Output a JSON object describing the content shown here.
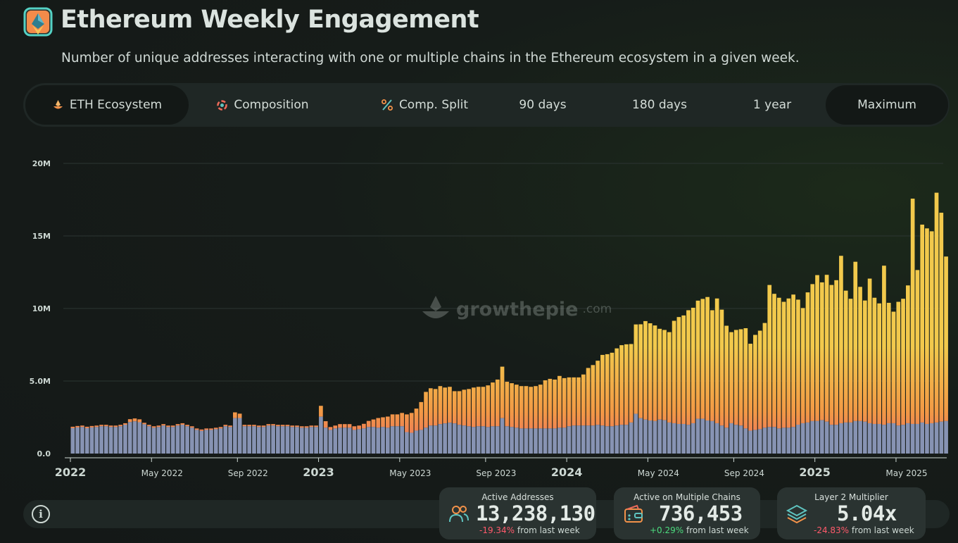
{
  "header": {
    "title": "Ethereum Weekly Engagement",
    "subtitle": "Number of unique addresses interacting with one or multiple chains in the Ethereum ecosystem in a given week."
  },
  "tabs": [
    {
      "label": "ETH Ecosystem",
      "icon": "eth-ecosystem-icon",
      "active": true
    },
    {
      "label": "Composition",
      "icon": "composition-icon",
      "active": false
    },
    {
      "label": "Comp. Split",
      "icon": "percent-icon",
      "active": false
    },
    {
      "label": "90 days",
      "active": false
    },
    {
      "label": "180 days",
      "active": false
    },
    {
      "label": "1 year",
      "active": false
    },
    {
      "label": "Maximum",
      "active": true
    }
  ],
  "watermark": {
    "name": "growthepie",
    "suffix": ".com"
  },
  "cards": {
    "active_addresses": {
      "label": "Active Addresses",
      "value": "13,238,130",
      "change": "-19.34%",
      "suffix": "from last week"
    },
    "multiple_chains": {
      "label": "Active on Multiple Chains",
      "value": "736,453",
      "change": "+0.29%",
      "suffix": "from last week"
    },
    "l2_multiplier": {
      "label": "Layer 2 Multiplier",
      "value": "5.04x",
      "change": "-24.83%",
      "suffix": "from last week"
    }
  },
  "colors": {
    "base_series": "#8793b3",
    "mid_series": "#ec6a62",
    "top_series": "#f2c94c",
    "accent_orange": "#f29a45",
    "positive": "#4cdb7e",
    "negative": "#ff5a6b"
  },
  "chart_data": {
    "type": "bar",
    "stacked": true,
    "ylim": [
      0,
      20000000
    ],
    "yticks": [
      0,
      5000000,
      10000000,
      15000000,
      20000000
    ],
    "ytick_labels": [
      "0.0",
      "5.0M",
      "10M",
      "15M",
      "20M"
    ],
    "xticks": [
      {
        "label": "2022",
        "week": 0,
        "major": true
      },
      {
        "label": "May 2022",
        "week": 17,
        "major": false
      },
      {
        "label": "Sep 2022",
        "week": 35,
        "major": false
      },
      {
        "label": "2023",
        "week": 52,
        "major": true
      },
      {
        "label": "May 2023",
        "week": 69,
        "major": false
      },
      {
        "label": "Sep 2023",
        "week": 87,
        "major": false
      },
      {
        "label": "2024",
        "week": 104,
        "major": true
      },
      {
        "label": "May 2024",
        "week": 121,
        "major": false
      },
      {
        "label": "Sep 2024",
        "week": 139,
        "major": false
      },
      {
        "label": "2025",
        "week": 156,
        "major": true
      },
      {
        "label": "May 2025",
        "week": 173,
        "major": false
      }
    ],
    "grid": true,
    "legend": "none",
    "weeks": 184,
    "series": [
      {
        "values": [
          1750000,
          1800000,
          1830000,
          1750000,
          1800000,
          1830000,
          1880000,
          1880000,
          1830000,
          1830000,
          1880000,
          1990000,
          2170000,
          2220000,
          2160000,
          2020000,
          1880000,
          1780000,
          1830000,
          1930000,
          1830000,
          1830000,
          1930000,
          1990000,
          1880000,
          1780000,
          1630000,
          1560000,
          1630000,
          1630000,
          1680000,
          1730000,
          1880000,
          1830000,
          2440000,
          2450000,
          1880000,
          1880000,
          1880000,
          1830000,
          1830000,
          1930000,
          1930000,
          1880000,
          1880000,
          1880000,
          1830000,
          1830000,
          1780000,
          1780000,
          1830000,
          1830000,
          2540000,
          1780000,
          1630000,
          1730000,
          1780000,
          1780000,
          1780000,
          1630000,
          1680000,
          1730000,
          1830000,
          1830000,
          1780000,
          1830000,
          1780000,
          1880000,
          1880000,
          1880000,
          1480000,
          1430000,
          1580000,
          1630000,
          1780000,
          1930000,
          1930000,
          2030000,
          2080000,
          2130000,
          2080000,
          1980000,
          1930000,
          1880000,
          1830000,
          1880000,
          1880000,
          1830000,
          1880000,
          1880000,
          2440000,
          1880000,
          1830000,
          1780000,
          1730000,
          1730000,
          1730000,
          1730000,
          1730000,
          1730000,
          1730000,
          1730000,
          1780000,
          1780000,
          1880000,
          1930000,
          1930000,
          1930000,
          1930000,
          1930000,
          1980000,
          1930000,
          1880000,
          1880000,
          1930000,
          1980000,
          1980000,
          2140000,
          2740000,
          2440000,
          2340000,
          2280000,
          2240000,
          2340000,
          2300000,
          2140000,
          2090000,
          2040000,
          2040000,
          1980000,
          2090000,
          2400000,
          2400000,
          2280000,
          2240000,
          2090000,
          1930000,
          1780000,
          2090000,
          1980000,
          1930000,
          1730000,
          1580000,
          1630000,
          1680000,
          1780000,
          1830000,
          1830000,
          1730000,
          1780000,
          1780000,
          1830000,
          1990000,
          2090000,
          2140000,
          2240000,
          2240000,
          2300000,
          2200000,
          1980000,
          1980000,
          2090000,
          2140000,
          2140000,
          2240000,
          2240000,
          2200000,
          2090000,
          2040000,
          2040000,
          1980000,
          2090000,
          2090000,
          1930000,
          1980000,
          2090000,
          2040000,
          2040000,
          2140000,
          2040000,
          2090000,
          2140000,
          2200000,
          2240000
        ]
      },
      {
        "values": [
          100000,
          100000,
          100000,
          100000,
          100000,
          100000,
          100000,
          100000,
          100000,
          100000,
          100000,
          100000,
          150000,
          150000,
          150000,
          100000,
          100000,
          100000,
          100000,
          100000,
          100000,
          100000,
          100000,
          100000,
          100000,
          100000,
          100000,
          100000,
          100000,
          100000,
          100000,
          100000,
          100000,
          100000,
          200000,
          150000,
          100000,
          100000,
          100000,
          100000,
          100000,
          100000,
          100000,
          100000,
          100000,
          100000,
          100000,
          100000,
          100000,
          100000,
          100000,
          100000,
          300000,
          200000,
          100000,
          100000,
          150000,
          150000,
          150000,
          150000,
          150000,
          200000,
          250000,
          250000,
          300000,
          300000,
          350000,
          400000,
          350000,
          350000,
          300000,
          350000,
          500000,
          650000,
          800000,
          850000,
          900000,
          900000,
          900000,
          950000,
          1000000,
          1050000,
          1100000,
          1150000,
          1200000,
          1250000,
          1300000,
          1350000,
          1400000,
          1450000,
          1550000,
          1450000,
          1450000,
          1500000,
          1500000,
          1550000,
          1600000,
          1650000,
          1700000,
          1750000,
          1800000,
          1850000,
          1900000,
          1950000,
          2000000,
          2050000,
          2100000,
          2150000,
          2200000,
          2250000,
          2300000,
          2350000,
          2400000,
          2450000,
          2500000,
          2550000,
          2600000,
          2600000,
          2700000,
          2700000,
          2700000,
          2700000,
          2700000,
          2700000,
          2700000,
          2700000,
          2700000,
          2700000,
          2700000,
          2700000,
          2700000,
          2700000,
          2700000,
          2700000,
          2700000,
          2700000,
          2700000,
          2700000,
          2700000,
          2700000,
          2700000,
          2700000,
          2700000,
          2700000,
          2700000,
          2700000,
          2700000,
          2700000,
          2700000,
          2700000,
          2700000,
          2700000,
          2700000,
          2700000,
          2700000,
          2700000,
          2700000,
          2700000,
          2700000,
          2700000,
          2700000,
          2700000,
          2700000,
          2700000,
          2700000,
          2700000,
          2700000,
          2700000,
          2700000,
          2700000,
          2700000,
          2700000,
          2700000,
          2700000,
          2700000,
          2700000,
          2700000,
          2700000,
          2700000,
          2700000,
          2700000,
          2700000,
          2700000,
          2700000
        ]
      },
      {
        "values": [
          0,
          0,
          0,
          0,
          0,
          0,
          0,
          0,
          0,
          0,
          0,
          0,
          50000,
          50000,
          50000,
          0,
          0,
          0,
          0,
          0,
          0,
          0,
          0,
          0,
          0,
          0,
          0,
          0,
          0,
          0,
          0,
          0,
          0,
          0,
          200000,
          150000,
          0,
          0,
          0,
          0,
          0,
          0,
          0,
          0,
          0,
          0,
          0,
          0,
          0,
          0,
          0,
          0,
          450000,
          250000,
          100000,
          100000,
          100000,
          100000,
          100000,
          100000,
          100000,
          120000,
          170000,
          270000,
          370000,
          370000,
          420000,
          420000,
          470000,
          570000,
          920000,
          1020000,
          1020000,
          1270000,
          1670000,
          1720000,
          1620000,
          1720000,
          1570000,
          1520000,
          1220000,
          1270000,
          1370000,
          1420000,
          1520000,
          1470000,
          1420000,
          1520000,
          1620000,
          1770000,
          2000000,
          1620000,
          1570000,
          1470000,
          1420000,
          1370000,
          1270000,
          1270000,
          1320000,
          1570000,
          1620000,
          1520000,
          1670000,
          1470000,
          1370000,
          1270000,
          1220000,
          1370000,
          1770000,
          1920000,
          2120000,
          2520000,
          2570000,
          2620000,
          2820000,
          2940000,
          2950000,
          2810000,
          3460000,
          3770000,
          4090000,
          4000000,
          3890000,
          3560000,
          3520000,
          3530000,
          4360000,
          4670000,
          4780000,
          5200000,
          5260000,
          5440000,
          5560000,
          5810000,
          4940000,
          5900000,
          5290000,
          4330000,
          3580000,
          3840000,
          3940000,
          4210000,
          3290000,
          3850000,
          4090000,
          4520000,
          7090000,
          6480000,
          6310000,
          5980000,
          6210000,
          6430000,
          5920000,
          5240000,
          6270000,
          6740000,
          7360000,
          6800000,
          7420000,
          6940000,
          7270000,
          8840000,
          6390000,
          5830000,
          8280000,
          6550000,
          5650000,
          7270000,
          6000000,
          5610000,
          8270000,
          5600000,
          4990000,
          5830000,
          5990000,
          6800000,
          12830000,
          7910000,
          10940000,
          10780000,
          10530000,
          13140000,
          11700000,
          8640000
        ]
      }
    ]
  }
}
